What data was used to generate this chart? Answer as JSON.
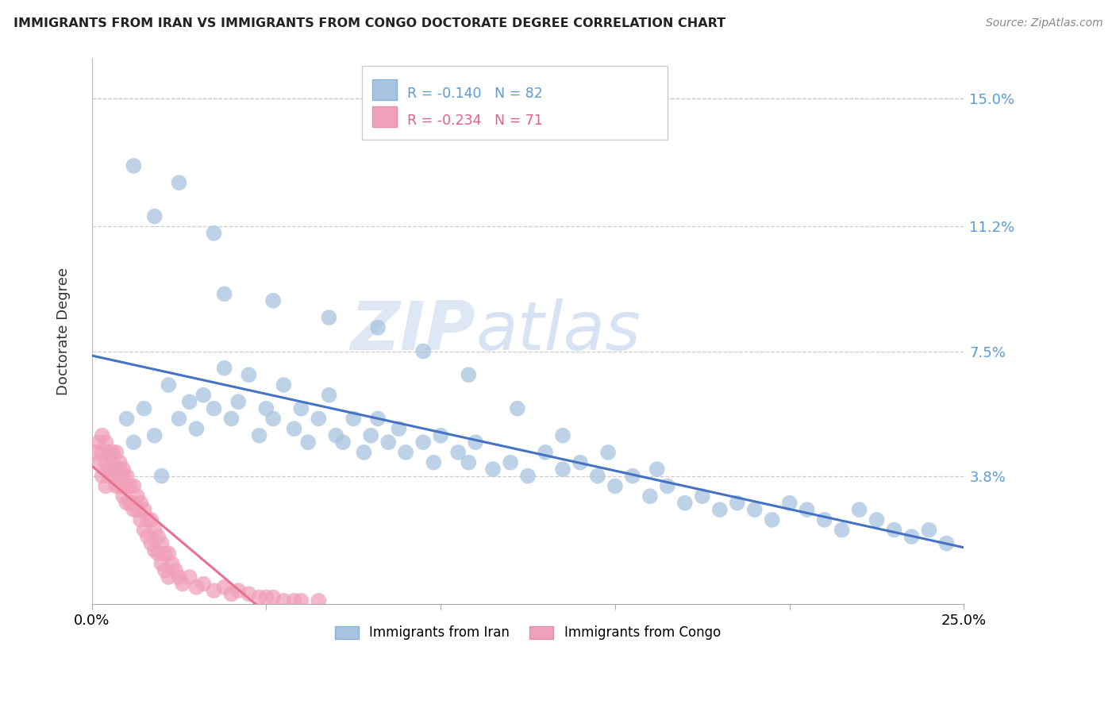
{
  "title": "IMMIGRANTS FROM IRAN VS IMMIGRANTS FROM CONGO DOCTORATE DEGREE CORRELATION CHART",
  "source": "Source: ZipAtlas.com",
  "ylabel_label": "Doctorate Degree",
  "iran_R": "-0.140",
  "iran_N": "82",
  "congo_R": "-0.234",
  "congo_N": "71",
  "iran_color": "#a8c4e0",
  "congo_color": "#f0a0b8",
  "iran_line_color": "#4472c4",
  "congo_line_color": "#e87090",
  "legend_iran_label": "Immigrants from Iran",
  "legend_congo_label": "Immigrants from Congo",
  "watermark_zip": "ZIP",
  "watermark_atlas": "atlas",
  "xlim": [
    0.0,
    0.25
  ],
  "ylim": [
    0.0,
    0.162
  ],
  "ytick_vals": [
    0.0,
    0.038,
    0.075,
    0.112,
    0.15
  ],
  "ytick_labels_right": [
    "",
    "3.8%",
    "7.5%",
    "11.2%",
    "15.0%"
  ],
  "xtick_vals": [
    0.0,
    0.05,
    0.1,
    0.15,
    0.2,
    0.25
  ],
  "xtick_labels": [
    "0.0%",
    "",
    "",
    "",
    "",
    "25.0%"
  ],
  "iran_x": [
    0.005,
    0.008,
    0.01,
    0.012,
    0.015,
    0.018,
    0.02,
    0.022,
    0.025,
    0.028,
    0.03,
    0.032,
    0.035,
    0.038,
    0.04,
    0.042,
    0.045,
    0.048,
    0.05,
    0.052,
    0.055,
    0.058,
    0.06,
    0.062,
    0.065,
    0.068,
    0.07,
    0.072,
    0.075,
    0.078,
    0.08,
    0.082,
    0.085,
    0.088,
    0.09,
    0.095,
    0.098,
    0.1,
    0.105,
    0.108,
    0.11,
    0.115,
    0.12,
    0.125,
    0.13,
    0.135,
    0.14,
    0.145,
    0.15,
    0.155,
    0.16,
    0.165,
    0.17,
    0.175,
    0.18,
    0.185,
    0.19,
    0.195,
    0.2,
    0.205,
    0.21,
    0.215,
    0.22,
    0.225,
    0.23,
    0.235,
    0.24,
    0.245,
    0.012,
    0.025,
    0.038,
    0.052,
    0.068,
    0.082,
    0.095,
    0.108,
    0.122,
    0.135,
    0.148,
    0.162,
    0.018,
    0.035
  ],
  "iran_y": [
    0.045,
    0.04,
    0.055,
    0.048,
    0.058,
    0.05,
    0.038,
    0.065,
    0.055,
    0.06,
    0.052,
    0.062,
    0.058,
    0.07,
    0.055,
    0.06,
    0.068,
    0.05,
    0.058,
    0.055,
    0.065,
    0.052,
    0.058,
    0.048,
    0.055,
    0.062,
    0.05,
    0.048,
    0.055,
    0.045,
    0.05,
    0.055,
    0.048,
    0.052,
    0.045,
    0.048,
    0.042,
    0.05,
    0.045,
    0.042,
    0.048,
    0.04,
    0.042,
    0.038,
    0.045,
    0.04,
    0.042,
    0.038,
    0.035,
    0.038,
    0.032,
    0.035,
    0.03,
    0.032,
    0.028,
    0.03,
    0.028,
    0.025,
    0.03,
    0.028,
    0.025,
    0.022,
    0.028,
    0.025,
    0.022,
    0.02,
    0.022,
    0.018,
    0.13,
    0.125,
    0.092,
    0.09,
    0.085,
    0.082,
    0.075,
    0.068,
    0.058,
    0.05,
    0.045,
    0.04,
    0.115,
    0.11
  ],
  "congo_x": [
    0.001,
    0.002,
    0.002,
    0.003,
    0.003,
    0.003,
    0.004,
    0.004,
    0.004,
    0.005,
    0.005,
    0.005,
    0.006,
    0.006,
    0.006,
    0.007,
    0.007,
    0.007,
    0.008,
    0.008,
    0.008,
    0.009,
    0.009,
    0.009,
    0.01,
    0.01,
    0.01,
    0.011,
    0.011,
    0.012,
    0.012,
    0.012,
    0.013,
    0.013,
    0.014,
    0.014,
    0.015,
    0.015,
    0.016,
    0.016,
    0.017,
    0.017,
    0.018,
    0.018,
    0.019,
    0.019,
    0.02,
    0.02,
    0.021,
    0.021,
    0.022,
    0.022,
    0.023,
    0.024,
    0.025,
    0.026,
    0.028,
    0.03,
    0.032,
    0.035,
    0.038,
    0.04,
    0.042,
    0.045,
    0.048,
    0.05,
    0.052,
    0.055,
    0.058,
    0.06,
    0.065
  ],
  "congo_y": [
    0.045,
    0.048,
    0.042,
    0.05,
    0.038,
    0.045,
    0.042,
    0.048,
    0.035,
    0.045,
    0.04,
    0.038,
    0.045,
    0.042,
    0.038,
    0.04,
    0.045,
    0.035,
    0.038,
    0.042,
    0.035,
    0.04,
    0.038,
    0.032,
    0.038,
    0.035,
    0.03,
    0.035,
    0.03,
    0.035,
    0.03,
    0.028,
    0.032,
    0.028,
    0.03,
    0.025,
    0.028,
    0.022,
    0.025,
    0.02,
    0.025,
    0.018,
    0.022,
    0.016,
    0.02,
    0.015,
    0.018,
    0.012,
    0.015,
    0.01,
    0.015,
    0.008,
    0.012,
    0.01,
    0.008,
    0.006,
    0.008,
    0.005,
    0.006,
    0.004,
    0.005,
    0.003,
    0.004,
    0.003,
    0.002,
    0.002,
    0.002,
    0.001,
    0.001,
    0.001,
    0.001
  ]
}
